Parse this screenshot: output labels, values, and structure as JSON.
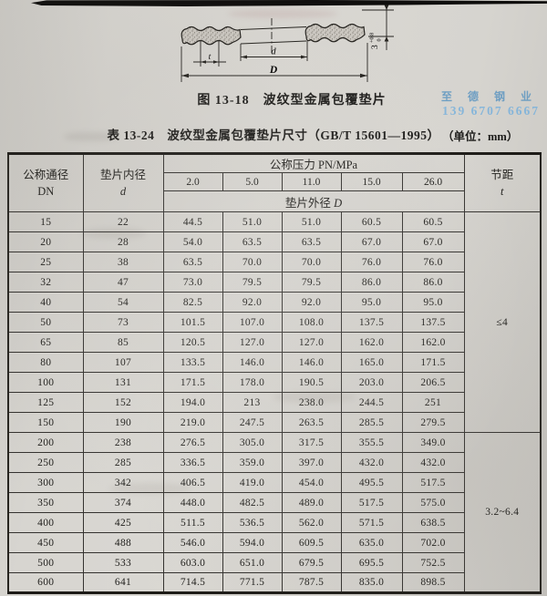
{
  "page": {
    "unit_label": "（单位：mm）"
  },
  "figure": {
    "caption": "图 13-18　波纹型金属包覆垫片",
    "labels": {
      "pitch": "t",
      "inner_dia": "d",
      "outer_dia": "D",
      "thickness": "3",
      "tolerance_upper": "+0.8",
      "tolerance_lower": "0"
    }
  },
  "watermark": {
    "line1": "至 德 钢 业",
    "line2": "139 6707 6667"
  },
  "table": {
    "title": "表 13-24　波纹型金属包覆垫片尺寸（GB/T 15601—1995）",
    "headers": {
      "col_dn": "公称通径",
      "col_dn_sub": "DN",
      "col_d": "垫片内径",
      "col_d_sub": "d",
      "pressure_group": "公称压力 PN/MPa",
      "pressures": [
        "2.0",
        "5.0",
        "11.0",
        "15.0",
        "26.0"
      ],
      "outer_dia_label": "垫片外径 ",
      "outer_dia_sym": "D",
      "pitch_label": "节距",
      "pitch_sub": "t"
    },
    "rows": [
      {
        "dn": "15",
        "d": "22",
        "D": [
          "44.5",
          "51.0",
          "51.0",
          "60.5",
          "60.5"
        ]
      },
      {
        "dn": "20",
        "d": "28",
        "D": [
          "54.0",
          "63.5",
          "63.5",
          "67.0",
          "67.0"
        ]
      },
      {
        "dn": "25",
        "d": "38",
        "D": [
          "63.5",
          "70.0",
          "70.0",
          "76.0",
          "76.0"
        ]
      },
      {
        "dn": "32",
        "d": "47",
        "D": [
          "73.0",
          "79.5",
          "79.5",
          "86.0",
          "86.0"
        ]
      },
      {
        "dn": "40",
        "d": "54",
        "D": [
          "82.5",
          "92.0",
          "92.0",
          "95.0",
          "95.0"
        ]
      },
      {
        "dn": "50",
        "d": "73",
        "D": [
          "101.5",
          "107.0",
          "108.0",
          "137.5",
          "137.5"
        ]
      },
      {
        "dn": "65",
        "d": "85",
        "D": [
          "120.5",
          "127.0",
          "127.0",
          "162.0",
          "162.0"
        ]
      },
      {
        "dn": "80",
        "d": "107",
        "D": [
          "133.5",
          "146.0",
          "146.0",
          "165.0",
          "171.5"
        ]
      },
      {
        "dn": "100",
        "d": "131",
        "D": [
          "171.5",
          "178.0",
          "190.5",
          "203.0",
          "206.5"
        ]
      },
      {
        "dn": "125",
        "d": "152",
        "D": [
          "194.0",
          "213",
          "238.0",
          "244.5",
          "251"
        ]
      },
      {
        "dn": "150",
        "d": "190",
        "D": [
          "219.0",
          "247.5",
          "263.5",
          "285.5",
          "279.5"
        ]
      },
      {
        "dn": "200",
        "d": "238",
        "D": [
          "276.5",
          "305.0",
          "317.5",
          "355.5",
          "349.0"
        ]
      },
      {
        "dn": "250",
        "d": "285",
        "D": [
          "336.5",
          "359.0",
          "397.0",
          "432.0",
          "432.0"
        ]
      },
      {
        "dn": "300",
        "d": "342",
        "D": [
          "406.5",
          "419.0",
          "454.0",
          "495.5",
          "517.5"
        ]
      },
      {
        "dn": "350",
        "d": "374",
        "D": [
          "448.0",
          "482.5",
          "489.0",
          "517.5",
          "575.0"
        ]
      },
      {
        "dn": "400",
        "d": "425",
        "D": [
          "511.5",
          "536.5",
          "562.0",
          "571.5",
          "638.5"
        ]
      },
      {
        "dn": "450",
        "d": "488",
        "D": [
          "546.0",
          "594.0",
          "609.5",
          "635.0",
          "702.0"
        ]
      },
      {
        "dn": "500",
        "d": "533",
        "D": [
          "603.0",
          "651.0",
          "679.5",
          "695.5",
          "752.5"
        ]
      },
      {
        "dn": "600",
        "d": "641",
        "D": [
          "714.5",
          "771.5",
          "787.5",
          "835.0",
          "898.5"
        ]
      }
    ],
    "pitch_groups": [
      {
        "label": "≤4",
        "rows": 11
      },
      {
        "label": "3.2~6.4",
        "rows": 8
      }
    ]
  }
}
